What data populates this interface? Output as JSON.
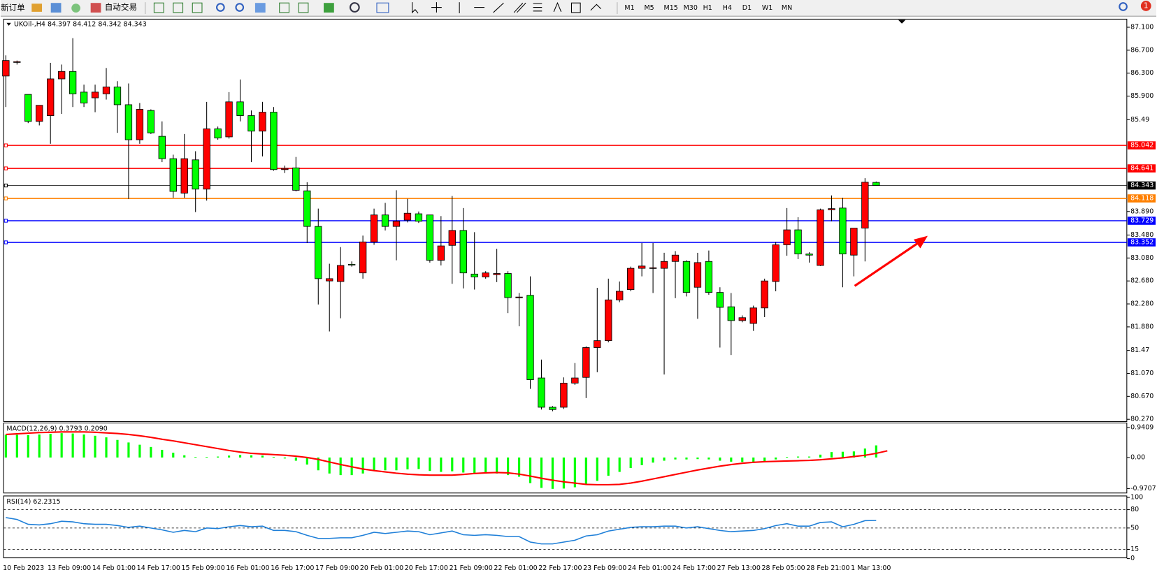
{
  "toolbar": {
    "new_order": "新订单",
    "auto_trading": "自动交易",
    "timeframes": [
      "M1",
      "M5",
      "M15",
      "M30",
      "H1",
      "H4",
      "D1",
      "W1",
      "MN"
    ],
    "alerts": "1"
  },
  "chart_data": [
    {
      "type": "candlestick",
      "title": "UKOil-,H4  84.397 84.412 84.342 84.343",
      "categories": [
        "10 Feb 2023",
        null,
        null,
        null,
        "13 Feb 09:00",
        null,
        null,
        null,
        "14 Feb 01:00",
        null,
        null,
        null,
        "14 Feb 17:00",
        null,
        null,
        null,
        "15 Feb 09:00",
        null,
        null,
        null,
        "16 Feb 01:00",
        null,
        null,
        null,
        "16 Feb 17:00",
        null,
        null,
        null,
        "17 Feb 09:00",
        null,
        null,
        null,
        "20 Feb 01:00",
        null,
        null,
        null,
        "20 Feb 17:00",
        null,
        null,
        null,
        "21 Feb 09:00",
        null,
        null,
        null,
        "22 Feb 01:00",
        null,
        null,
        null,
        "22 Feb 17:00",
        null,
        null,
        null,
        "23 Feb 09:00",
        null,
        null,
        null,
        "24 Feb 01:00",
        null,
        null,
        null,
        "24 Feb 17:00",
        null,
        null,
        null,
        "27 Feb 13:00",
        null,
        null,
        null,
        "28 Feb 05:00",
        null,
        null,
        null,
        "28 Feb 21:00",
        null,
        null,
        null,
        "1 Mar 13:00",
        null,
        null
      ],
      "open": [
        86.25,
        86.5,
        85.93,
        85.46,
        85.56,
        86.2,
        86.33,
        85.97,
        85.87,
        85.94,
        86.06,
        85.75,
        85.14,
        85.65,
        85.2,
        84.81,
        84.21,
        84.79,
        84.28,
        85.33,
        85.19,
        85.8,
        85.56,
        85.29,
        85.62,
        84.62,
        84.65,
        84.25,
        83.63,
        82.68,
        82.67,
        82.97,
        82.82,
        83.36,
        83.83,
        83.63,
        83.74,
        83.85,
        83.83,
        83.04,
        83.3,
        83.56,
        82.8,
        82.75,
        82.79,
        82.81,
        82.4,
        82.43,
        80.99,
        80.48,
        80.48,
        80.9,
        81.0,
        81.52,
        81.64,
        82.35,
        82.53,
        82.9,
        82.91,
        82.9,
        83.02,
        83.02,
        82.57,
        83.02,
        82.48,
        82.23,
        81.99,
        81.94,
        82.21,
        82.67,
        83.31,
        83.57,
        83.15,
        82.95,
        83.92,
        83.95,
        83.13,
        83.6,
        84.397
      ],
      "high": [
        86.61,
        86.52,
        85.93,
        85.74,
        86.48,
        86.45,
        86.91,
        86.1,
        86.1,
        86.39,
        86.16,
        86.12,
        85.78,
        85.67,
        85.46,
        84.88,
        85.24,
        84.94,
        85.8,
        85.37,
        85.97,
        86.19,
        85.65,
        85.8,
        85.71,
        84.69,
        84.84,
        84.4,
        83.94,
        82.98,
        83.27,
        83.02,
        83.47,
        83.94,
        84.04,
        84.26,
        84.11,
        83.89,
        83.83,
        83.81,
        84.16,
        83.95,
        83.53,
        82.85,
        83.24,
        82.85,
        82.47,
        82.76,
        81.31,
        80.5,
        81.0,
        81.25,
        81.54,
        82.56,
        82.72,
        82.67,
        82.93,
        83.34,
        83.34,
        83.17,
        83.2,
        83.04,
        83.17,
        83.21,
        82.57,
        82.47,
        82.08,
        82.25,
        82.72,
        83.36,
        83.95,
        83.79,
        83.18,
        83.94,
        84.17,
        84.13,
        83.6,
        84.47,
        84.412
      ],
      "low": [
        85.71,
        86.45,
        85.43,
        85.39,
        85.07,
        85.59,
        85.71,
        85.71,
        85.62,
        85.84,
        85.26,
        84.11,
        85.07,
        85.24,
        84.75,
        84.13,
        84.13,
        83.88,
        84.08,
        85.14,
        85.16,
        85.46,
        84.75,
        84.85,
        84.6,
        84.56,
        84.24,
        83.34,
        82.27,
        81.8,
        82.03,
        82.93,
        82.72,
        83.31,
        83.56,
        83.04,
        83.7,
        83.69,
        83.0,
        82.95,
        82.63,
        82.55,
        82.53,
        82.72,
        82.66,
        82.12,
        81.89,
        80.8,
        80.44,
        80.41,
        80.45,
        80.87,
        80.64,
        81.09,
        81.61,
        82.31,
        82.5,
        82.76,
        82.47,
        81.05,
        82.38,
        82.41,
        82.02,
        82.44,
        81.52,
        81.39,
        81.96,
        81.81,
        82.05,
        82.5,
        83.12,
        83.06,
        83.0,
        82.94,
        83.72,
        82.57,
        82.76,
        83.02,
        84.342
      ],
      "close": [
        86.52,
        86.5,
        85.46,
        85.74,
        86.2,
        86.33,
        85.94,
        85.78,
        85.97,
        86.06,
        85.75,
        85.14,
        85.67,
        85.26,
        84.81,
        84.24,
        84.81,
        84.28,
        85.33,
        85.17,
        85.8,
        85.56,
        85.29,
        85.62,
        84.62,
        84.64,
        84.26,
        83.63,
        82.72,
        82.72,
        82.95,
        82.96,
        83.36,
        83.83,
        83.63,
        83.72,
        83.86,
        83.72,
        83.04,
        83.29,
        83.56,
        82.82,
        82.75,
        82.82,
        82.81,
        82.39,
        82.4,
        80.96,
        80.48,
        80.44,
        80.9,
        80.99,
        81.52,
        81.64,
        82.35,
        82.5,
        82.9,
        82.94,
        82.91,
        83.02,
        83.13,
        82.48,
        83.0,
        82.48,
        82.22,
        81.99,
        82.04,
        82.21,
        82.68,
        83.31,
        83.57,
        83.15,
        83.13,
        83.92,
        83.94,
        83.15,
        83.6,
        84.4,
        84.343
      ],
      "up_color": "#ff0000",
      "down_color": "#00ff00",
      "ylim": [
        80.244,
        87.228
      ],
      "yticks": [
        {
          "value": 87.1,
          "label": "87.100"
        },
        {
          "value": 86.7,
          "label": "86.700"
        },
        {
          "value": 86.3,
          "label": "86.300"
        },
        {
          "value": 85.9,
          "label": "85.900"
        },
        85.49,
        {
          "value": 83.89,
          "label": "83.890"
        },
        {
          "value": 83.48,
          "label": "83.480"
        },
        {
          "value": 83.08,
          "label": "83.080"
        },
        {
          "value": 82.68,
          "label": "82.680"
        },
        {
          "value": 82.28,
          "label": "82.280"
        },
        {
          "value": 81.88,
          "label": "81.880"
        },
        81.47,
        {
          "value": 81.07,
          "label": "81.070"
        },
        {
          "value": 80.67,
          "label": "80.670"
        },
        {
          "value": 80.27,
          "label": "80.270"
        }
      ],
      "levels": [
        {
          "value": 85.042,
          "color": "#ff0000"
        },
        {
          "value": 84.641,
          "color": "#ff0000"
        },
        {
          "value": 84.343,
          "color": "#000000"
        },
        {
          "value": 84.118,
          "color": "#ff8000"
        },
        {
          "value": 83.729,
          "color": "#0000ff"
        },
        {
          "value": 83.352,
          "color": "#0000ff"
        }
      ],
      "grid": false
    },
    {
      "type": "macd",
      "title": "MACD(12,26,9) 0.3793 0.2090",
      "series": [
        {
          "style": "histogram",
          "color": "#00ff00",
          "values": [
            0.71,
            0.71,
            0.7,
            0.72,
            0.74,
            0.76,
            0.75,
            0.72,
            0.68,
            0.63,
            0.55,
            0.47,
            0.4,
            0.33,
            0.24,
            0.15,
            0.07,
            0.02,
            0.02,
            0.03,
            0.06,
            0.08,
            0.07,
            0.06,
            0.02,
            -0.03,
            -0.1,
            -0.22,
            -0.4,
            -0.5,
            -0.55,
            -0.55,
            -0.5,
            -0.42,
            -0.4,
            -0.4,
            -0.37,
            -0.36,
            -0.42,
            -0.45,
            -0.43,
            -0.47,
            -0.5,
            -0.5,
            -0.5,
            -0.55,
            -0.6,
            -0.8,
            -0.95,
            -0.98,
            -0.97,
            -0.93,
            -0.85,
            -0.73,
            -0.57,
            -0.45,
            -0.33,
            -0.24,
            -0.16,
            -0.1,
            -0.06,
            -0.06,
            -0.05,
            -0.06,
            -0.1,
            -0.13,
            -0.14,
            -0.14,
            -0.12,
            -0.06,
            0.02,
            0.03,
            0.03,
            0.09,
            0.17,
            0.18,
            0.19,
            0.28,
            0.3793
          ]
        },
        {
          "style": "line",
          "color": "#ff0000",
          "values": [
            0.72,
            0.74,
            0.76,
            0.78,
            0.79,
            0.8,
            0.8,
            0.8,
            0.79,
            0.77,
            0.75,
            0.72,
            0.68,
            0.63,
            0.57,
            0.52,
            0.46,
            0.4,
            0.34,
            0.28,
            0.22,
            0.17,
            0.13,
            0.11,
            0.09,
            0.07,
            0.04,
            0.0,
            -0.06,
            -0.14,
            -0.22,
            -0.29,
            -0.36,
            -0.41,
            -0.45,
            -0.49,
            -0.52,
            -0.54,
            -0.55,
            -0.55,
            -0.55,
            -0.53,
            -0.5,
            -0.48,
            -0.47,
            -0.48,
            -0.52,
            -0.58,
            -0.65,
            -0.71,
            -0.76,
            -0.8,
            -0.84,
            -0.85,
            -0.85,
            -0.84,
            -0.8,
            -0.74,
            -0.67,
            -0.6,
            -0.53,
            -0.46,
            -0.39,
            -0.33,
            -0.27,
            -0.22,
            -0.18,
            -0.15,
            -0.13,
            -0.12,
            -0.11,
            -0.1,
            -0.09,
            -0.07,
            -0.04,
            -0.01,
            0.03,
            0.07,
            0.13,
            0.209
          ]
        }
      ],
      "ylim": [
        -1.109,
        1.079
      ],
      "yticks": [
        0.9409,
        {
          "value": 0,
          "label": "0.00"
        },
        -0.9707
      ]
    },
    {
      "type": "rsi",
      "title": "RSI(14) 62.2315",
      "series": [
        {
          "style": "line",
          "color": "#1e7fd8",
          "values": [
            67,
            64,
            56,
            55,
            57,
            61,
            60,
            57,
            56,
            56,
            54,
            51,
            53,
            50,
            47,
            43,
            46,
            44,
            50,
            49,
            52,
            54,
            52,
            53,
            46,
            46,
            44,
            38,
            33,
            33,
            34,
            34,
            38,
            43,
            41,
            43,
            45,
            44,
            39,
            42,
            45,
            39,
            38,
            39,
            38,
            36,
            36,
            27,
            24,
            24,
            27,
            30,
            37,
            39,
            45,
            48,
            51,
            52,
            52,
            53,
            53,
            50,
            52,
            49,
            46,
            44,
            45,
            46,
            49,
            54,
            57,
            53,
            53,
            59,
            60,
            52,
            56,
            62,
            62.2315
          ]
        }
      ],
      "ylim": [
        0,
        100
      ],
      "yticks": [
        100,
        80,
        50,
        15,
        0
      ]
    }
  ]
}
